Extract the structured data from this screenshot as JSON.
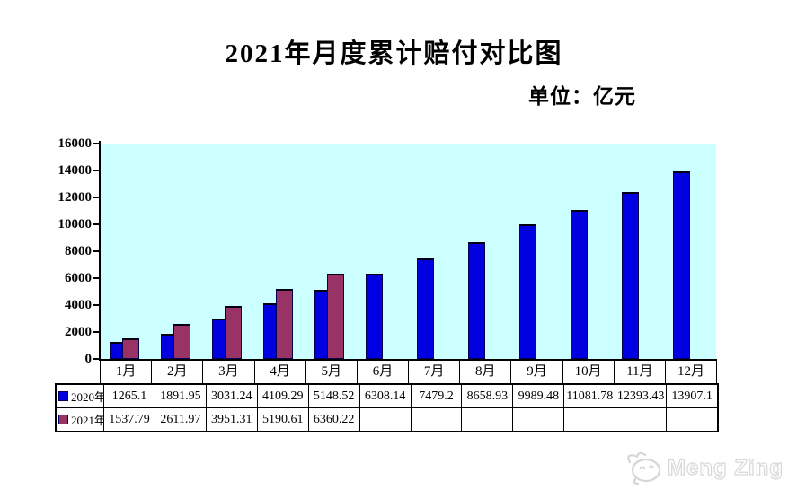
{
  "header": {
    "title": "2021年月度累计赔付对比图",
    "unit_label": "单位：亿元"
  },
  "chart_data": {
    "type": "bar",
    "title": "2021年月度累计赔付对比图",
    "unit": "亿元",
    "categories": [
      "1月",
      "2月",
      "3月",
      "4月",
      "5月",
      "6月",
      "7月",
      "8月",
      "9月",
      "10月",
      "11月",
      "12月"
    ],
    "series": [
      {
        "name": "2020年",
        "color": "#0000E0",
        "border_color": "#000050",
        "values": [
          1265.1,
          1891.95,
          3031.24,
          4109.29,
          5148.52,
          6308.14,
          7479.2,
          8658.93,
          9989.48,
          11081.78,
          12393.43,
          13907.1
        ]
      },
      {
        "name": "2021年",
        "color": "#993366",
        "border_color": "#000050",
        "values": [
          1537.79,
          2611.97,
          3951.31,
          5190.61,
          6360.22,
          null,
          null,
          null,
          null,
          null,
          null,
          null
        ]
      }
    ],
    "ylim": [
      0,
      16000
    ],
    "ytick_step": 2000,
    "grid": false,
    "plot_background": "#CCFFFF",
    "legend_position": "data-table-left",
    "bar_overlap": true
  },
  "watermark": {
    "text": "Meng Zing",
    "logo": "cat-face-logo"
  }
}
